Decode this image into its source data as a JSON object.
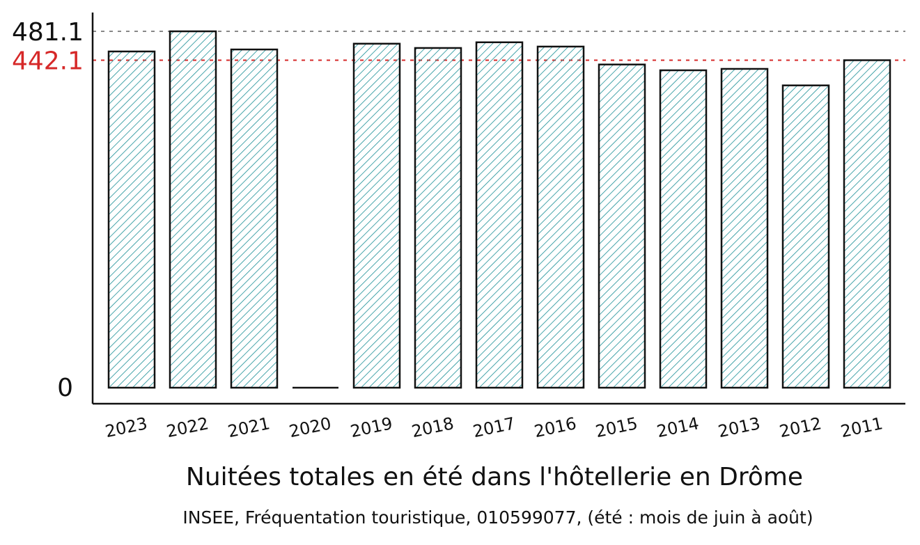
{
  "chart_data": {
    "type": "bar",
    "categories": [
      "2023",
      "2022",
      "2021",
      "2020",
      "2019",
      "2018",
      "2017",
      "2016",
      "2015",
      "2014",
      "2013",
      "2012",
      "2011"
    ],
    "values": [
      453.9,
      481.1,
      456.6,
      0,
      464.4,
      458.6,
      466.3,
      460.5,
      436.3,
      428.5,
      430.4,
      408.1,
      442.1
    ],
    "title": "",
    "xlabel": "Nuitées totales en été dans l'hôtellerie en Drôme",
    "ylabel": "",
    "source": "INSEE, Fréquentation touristique, 010599077, (été : mois de juin à août)",
    "ylim": [
      0,
      481.1
    ],
    "y_ticks": [
      {
        "value": 0,
        "label": "0"
      },
      {
        "value": 481.1,
        "label": "481.1"
      }
    ],
    "reference_lines": [
      {
        "value": 481.1,
        "label": "481.1",
        "color": "#888888"
      },
      {
        "value": 442.1,
        "label": "442.1",
        "color": "#d62828"
      }
    ],
    "colors": {
      "bar_fill": "#1a8f96",
      "bar_stroke": "#111111",
      "axis": "#111111"
    },
    "grid": false
  }
}
